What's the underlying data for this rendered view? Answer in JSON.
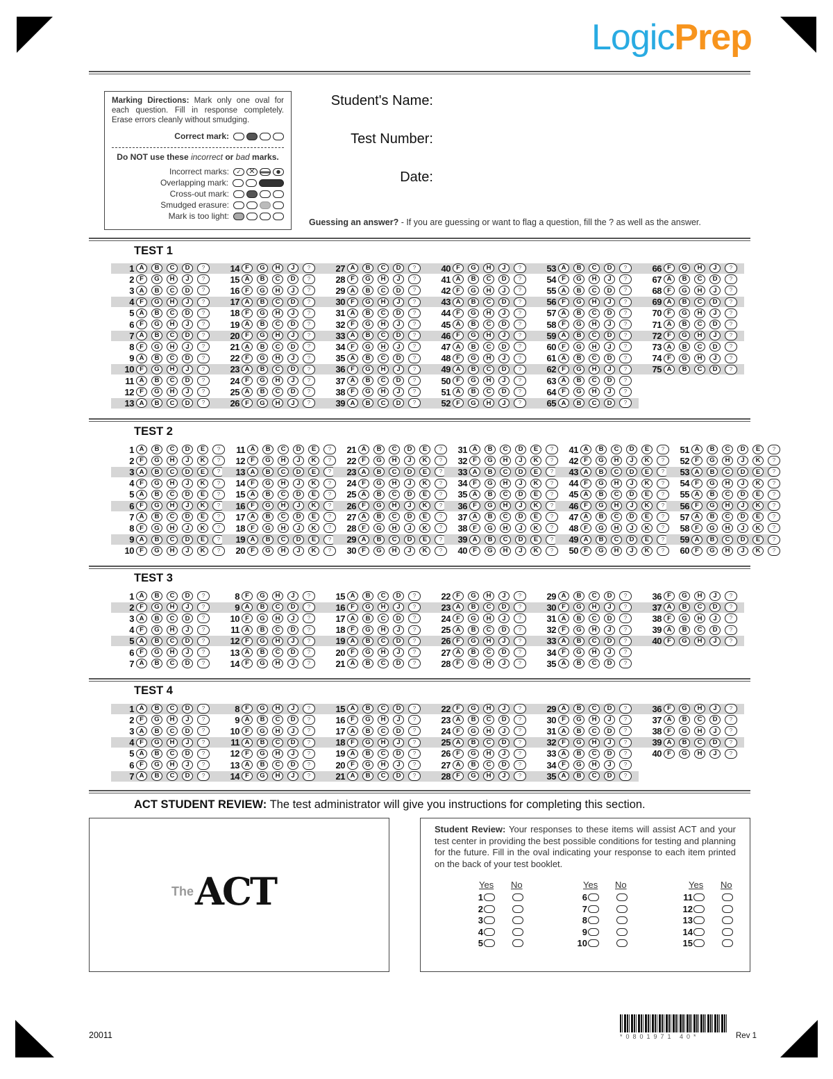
{
  "brand": {
    "logo_part1": "Logic",
    "logo_part2": "Prep",
    "color1": "#29abe2",
    "color2": "#f7941d"
  },
  "directions": {
    "title": "Marking Directions:",
    "text": "Mark only one oval for each question. Fill in response completely. Erase errors cleanly without smudging.",
    "correct_label": "Correct mark:",
    "warning_pre": "Do NOT use these ",
    "warning_em1": "incorrect",
    "warning_mid": " or ",
    "warning_em2": "bad",
    "warning_post": " marks.",
    "incorrect_label": "Incorrect marks:",
    "overlapping_label": "Overlapping mark:",
    "crossout_label": "Cross-out mark:",
    "smudged_label": "Smudged erasure:",
    "light_label": "Mark is too light:"
  },
  "fields": {
    "name": "Student's Name:",
    "test_number": "Test Number:",
    "date": "Date:"
  },
  "guessing": {
    "bold": "Guessing an answer?",
    "text": " - If you are guessing or want to flag a question, fill the ? as well as the answer.",
    "flag_symbol": "?"
  },
  "tests": [
    {
      "title": "TEST 1",
      "questions": 75,
      "per_column": 13,
      "odd_options": [
        "A",
        "B",
        "C",
        "D"
      ],
      "even_options": [
        "F",
        "G",
        "H",
        "J"
      ],
      "shaded_rows": [
        1,
        4,
        7,
        10,
        13
      ]
    },
    {
      "title": "TEST 2",
      "questions": 60,
      "per_column": 10,
      "odd_options": [
        "A",
        "B",
        "C",
        "D",
        "E"
      ],
      "even_options": [
        "F",
        "G",
        "H",
        "J",
        "K"
      ],
      "shaded_rows": [
        3,
        6,
        9
      ]
    },
    {
      "title": "TEST 3",
      "questions": 40,
      "per_column": 7,
      "odd_options": [
        "A",
        "B",
        "C",
        "D"
      ],
      "even_options": [
        "F",
        "G",
        "H",
        "J"
      ],
      "shaded_rows": [
        2,
        5
      ]
    },
    {
      "title": "TEST 4",
      "questions": 40,
      "per_column": 7,
      "odd_options": [
        "A",
        "B",
        "C",
        "D"
      ],
      "even_options": [
        "F",
        "G",
        "H",
        "J"
      ],
      "shaded_rows": [
        1,
        4,
        7
      ]
    }
  ],
  "review": {
    "title_bold": "ACT STUDENT REVIEW:",
    "title_text": " The test administrator will give you instructions for completing this section.",
    "act_logo_the": "The",
    "act_logo_name": "ACT",
    "student_review_bold": "Student Review:",
    "student_review_text": " Your responses to these items will assist ACT and your test center in providing the best possible conditions for testing and planning for the future. Fill in the oval indicating your response to each item printed on the back of your test booklet.",
    "yes_label": "Yes",
    "no_label": "No",
    "items": 15
  },
  "footer": {
    "form_code": "20011",
    "barcode_digits": "*0801971 40*",
    "revision": "Rev 1"
  }
}
